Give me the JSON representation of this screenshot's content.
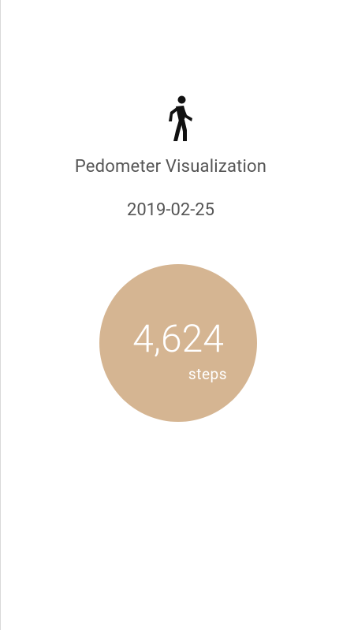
{
  "app": {
    "title": "Pedometer Visualization",
    "icon": "walking-person-icon"
  },
  "summary": {
    "date": "2019-02-25",
    "steps_display": "4,624",
    "steps_value": 4624,
    "unit_label": "steps"
  },
  "colors": {
    "background": "#ffffff",
    "circle": "#d5b592",
    "text": "#555555",
    "circle_text": "#ffffff"
  }
}
